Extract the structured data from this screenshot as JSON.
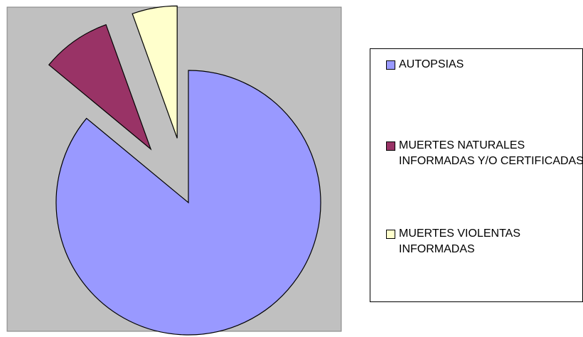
{
  "chart_data": {
    "type": "pie",
    "categories": [
      "AUTOPSIAS",
      "MUERTES NATURALES INFORMADAS Y/O CERTIFICADAS",
      "MUERTES VIOLENTAS INFORMADAS"
    ],
    "values": [
      86,
      8.5,
      5.5
    ],
    "colors": [
      "#9999ff",
      "#993366",
      "#ffffcc"
    ],
    "legend": "right"
  }
}
